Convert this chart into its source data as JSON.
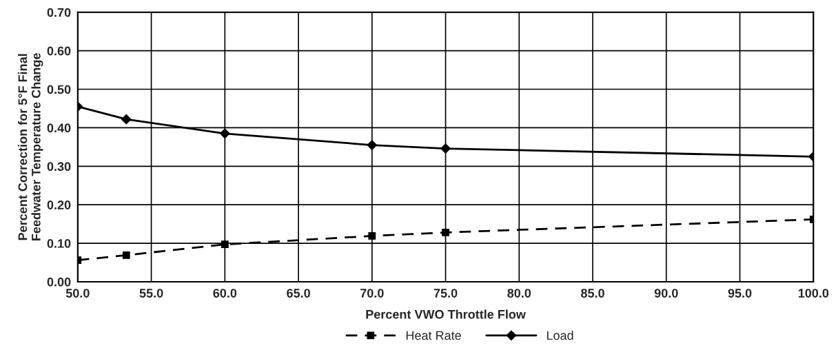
{
  "chart_data": {
    "type": "line",
    "xlabel": "Percent VWO Throttle Flow",
    "ylabel": "Percent Correction for 5°F Final\nFeedwater Temperature Change",
    "x": [
      50.0,
      53.3,
      60.0,
      70.0,
      75.0,
      100.0
    ],
    "series": [
      {
        "name": "Heat Rate",
        "color": "#000000",
        "marker": "square",
        "line_style": "dashed",
        "values": [
          0.056,
          0.069,
          0.097,
          0.119,
          0.128,
          0.162
        ]
      },
      {
        "name": "Load",
        "color": "#000000",
        "marker": "diamond",
        "line_style": "solid",
        "values": [
          0.455,
          0.422,
          0.385,
          0.355,
          0.346,
          0.325
        ]
      }
    ],
    "xlim": [
      50,
      100
    ],
    "xticks": [
      {
        "value": 50,
        "label": "50.0"
      },
      {
        "value": 55,
        "label": "55.0"
      },
      {
        "value": 60,
        "label": "60.0"
      },
      {
        "value": 65,
        "label": "65.0"
      },
      {
        "value": 70,
        "label": "70.0"
      },
      {
        "value": 75,
        "label": "75.0"
      },
      {
        "value": 80,
        "label": "80.0"
      },
      {
        "value": 85,
        "label": "85.0"
      },
      {
        "value": 90,
        "label": "90.0"
      },
      {
        "value": 95,
        "label": "95.0"
      },
      {
        "value": 100,
        "label": "100.0"
      }
    ],
    "ylim": [
      0,
      0.7
    ],
    "yticks": [
      {
        "value": 0,
        "label": "0.00"
      },
      {
        "value": 0.1,
        "label": "0.10"
      },
      {
        "value": 0.2,
        "label": "0.20"
      },
      {
        "value": 0.3,
        "label": "0.30"
      },
      {
        "value": 0.4,
        "label": "0.40"
      },
      {
        "value": 0.5,
        "label": "0.50"
      },
      {
        "value": 0.6,
        "label": "0.60"
      },
      {
        "value": 0.7,
        "label": "0.70"
      }
    ],
    "grid": true,
    "legend": "bottom"
  }
}
